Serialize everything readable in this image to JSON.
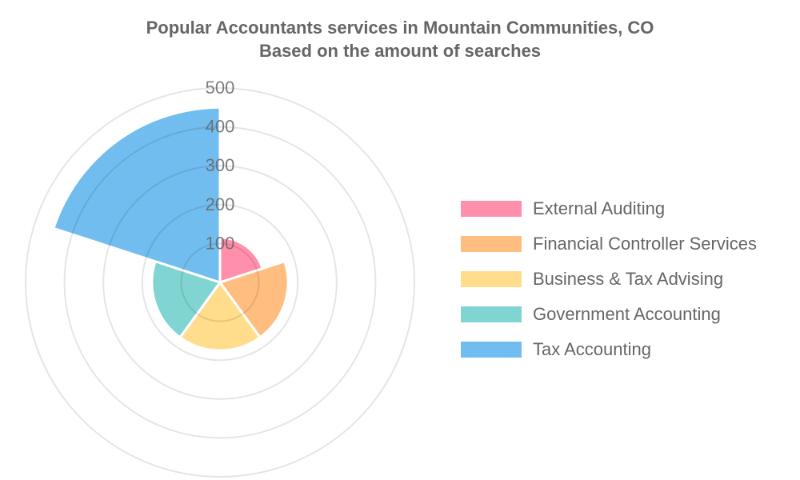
{
  "chart_data": {
    "type": "polarArea",
    "title": "Popular Accountants services in Mountain Communities, CO",
    "subtitle": "Based on the amount of searches",
    "categories": [
      "External Auditing",
      "Financial Controller Services",
      "Business & Tax Advising",
      "Government Accounting",
      "Tax Accounting"
    ],
    "values": [
      115,
      175,
      175,
      175,
      450
    ],
    "colors": [
      "#ff8fab",
      "#ffbd80",
      "#ffdd8c",
      "#80d4d2",
      "#72bdf0"
    ],
    "rlim": [
      0,
      500
    ],
    "ticks": [
      "100",
      "200",
      "300",
      "400",
      "500"
    ],
    "tick_values": [
      100,
      200,
      300,
      400,
      500
    ],
    "grid": true,
    "legend_position": "right"
  }
}
